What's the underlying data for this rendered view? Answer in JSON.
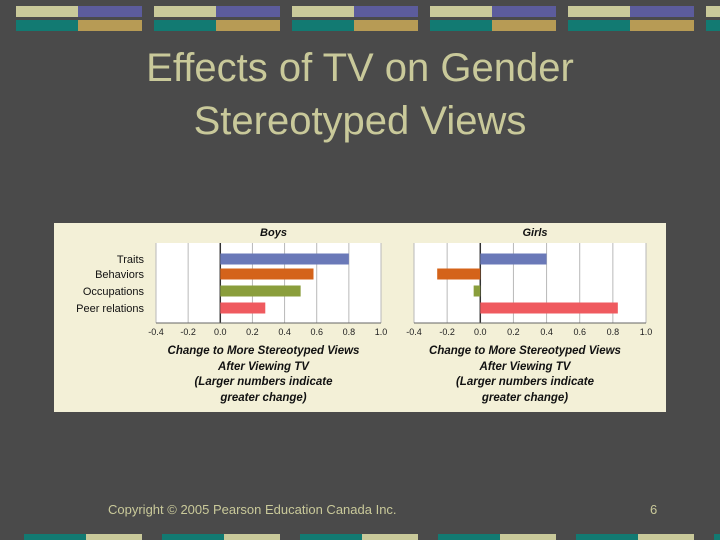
{
  "slide": {
    "title_line1": "Effects of TV on Gender",
    "title_line2": "Stereotyped Views",
    "copyright": "Copyright © 2005 Pearson Education Canada Inc.",
    "page_number": "6"
  },
  "theme": {
    "background": "#4a4a4a",
    "title_color": "#c9c99a",
    "band_colors": [
      "#c9c99a",
      "#5c5c9c",
      "#127a72",
      "#b79b55"
    ]
  },
  "chart_data": [
    {
      "type": "bar",
      "orientation": "horizontal",
      "title": "Boys",
      "categories": [
        "Traits",
        "Behaviors",
        "Occupations",
        "Peer relations"
      ],
      "values": [
        0.8,
        0.58,
        0.5,
        0.28
      ],
      "colors": [
        "#6a79b8",
        "#d4631a",
        "#8a9e3c",
        "#ef5a5f"
      ],
      "xlim": [
        -0.4,
        1.0
      ],
      "xticks": [
        "-0.4",
        "-0.2",
        "0.0",
        "0.2",
        "0.4",
        "0.6",
        "0.8",
        "1.0"
      ],
      "xlabel_lines": [
        "Change to More Stereotyped Views",
        "After Viewing TV",
        "(Larger numbers indicate",
        "greater change)"
      ],
      "grid": true
    },
    {
      "type": "bar",
      "orientation": "horizontal",
      "title": "Girls",
      "categories": [
        "Traits",
        "Behaviors",
        "Occupations",
        "Peer relations"
      ],
      "values": [
        0.4,
        -0.26,
        -0.04,
        0.83
      ],
      "colors": [
        "#6a79b8",
        "#d4631a",
        "#8a9e3c",
        "#ef5a5f"
      ],
      "xlim": [
        -0.4,
        1.0
      ],
      "xticks": [
        "-0.4",
        "-0.2",
        "0.0",
        "0.2",
        "0.4",
        "0.6",
        "0.8",
        "1.0"
      ],
      "xlabel_lines": [
        "Change to More Stereotyped Views",
        "After Viewing TV",
        "(Larger numbers indicate",
        "greater change)"
      ],
      "grid": true
    }
  ]
}
